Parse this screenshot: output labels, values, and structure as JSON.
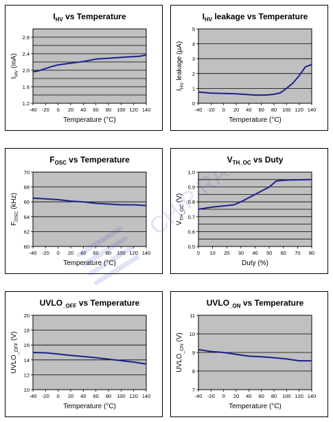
{
  "watermark": "CHIP RAIL",
  "chart_data": [
    {
      "type": "line",
      "title": "I",
      "title_sub": "HV",
      "title_rest": " vs Temperature",
      "xlabel": "Temperature (°C)",
      "ylabel": "I",
      "ylabel_sub": "HV",
      "ylabel_rest": " (mA)",
      "xlim": [
        -40,
        140
      ],
      "ylim": [
        1.2,
        3.0
      ],
      "xticks": [
        -40,
        -20,
        0,
        20,
        40,
        60,
        80,
        100,
        120,
        140
      ],
      "yticks": [
        "1.2",
        "1.6",
        "2.0",
        "2.4",
        "2.8"
      ],
      "ytick_values": [
        1.2,
        1.6,
        2.0,
        2.4,
        2.8
      ],
      "ygrid": [
        1.2,
        1.4,
        1.6,
        1.8,
        2.0,
        2.2,
        2.4,
        2.6,
        2.8,
        3.0
      ],
      "x": [
        -40,
        -30,
        -20,
        -10,
        0,
        10,
        20,
        30,
        40,
        50,
        60,
        70,
        80,
        90,
        100,
        110,
        120,
        130,
        140
      ],
      "y": [
        1.96,
        1.99,
        2.04,
        2.09,
        2.13,
        2.15,
        2.17,
        2.19,
        2.21,
        2.24,
        2.27,
        2.28,
        2.29,
        2.3,
        2.31,
        2.32,
        2.33,
        2.34,
        2.37
      ]
    },
    {
      "type": "line",
      "title": "I",
      "title_sub": "HV",
      "title_rest": " leakage vs Temperature",
      "xlabel": "Temperature (°C)",
      "ylabel": "I",
      "ylabel_sub": "HV",
      "ylabel_rest": " leakage (µA)",
      "xlim": [
        -40,
        140
      ],
      "ylim": [
        0,
        5
      ],
      "xticks": [
        -40,
        -20,
        0,
        20,
        40,
        60,
        80,
        100,
        120,
        140
      ],
      "yticks": [
        "0",
        "1",
        "2",
        "3",
        "4",
        "5"
      ],
      "ytick_values": [
        0,
        1,
        2,
        3,
        4,
        5
      ],
      "ygrid": [
        0,
        1,
        2,
        3,
        4,
        5
      ],
      "x": [
        -40,
        -20,
        0,
        20,
        40,
        50,
        60,
        70,
        80,
        90,
        100,
        110,
        120,
        130,
        140
      ],
      "y": [
        0.75,
        0.68,
        0.66,
        0.64,
        0.58,
        0.55,
        0.55,
        0.56,
        0.6,
        0.7,
        1.0,
        1.35,
        1.85,
        2.45,
        2.6
      ]
    },
    {
      "type": "line",
      "title": "F",
      "title_sub": "OSC",
      "title_rest": " vs Temperature",
      "xlabel": "Temperature (°C)",
      "ylabel": "F",
      "ylabel_sub": "OSC",
      "ylabel_rest": " (kHz)",
      "xlim": [
        -40,
        140
      ],
      "ylim": [
        60,
        70
      ],
      "xticks": [
        -40,
        -20,
        0,
        20,
        40,
        60,
        80,
        100,
        120,
        140
      ],
      "yticks": [
        "60",
        "62",
        "64",
        "66",
        "68",
        "70"
      ],
      "ytick_values": [
        60,
        62,
        64,
        66,
        68,
        70
      ],
      "ygrid": [
        60,
        62,
        64,
        66,
        68,
        70
      ],
      "x": [
        -40,
        -20,
        0,
        20,
        40,
        60,
        80,
        100,
        120,
        140
      ],
      "y": [
        66.5,
        66.4,
        66.3,
        66.1,
        66.0,
        65.8,
        65.7,
        65.6,
        65.6,
        65.5
      ]
    },
    {
      "type": "line",
      "title": "V",
      "title_sub": "TH_OC",
      "title_rest": " vs Duty",
      "xlabel": "Duty (%)",
      "ylabel": "V",
      "ylabel_sub": "TH_OC",
      "ylabel_rest": " (V)",
      "xlim": [
        0,
        80
      ],
      "ylim": [
        0.5,
        1.0
      ],
      "xticks": [
        0,
        10,
        20,
        30,
        40,
        50,
        60,
        70,
        80
      ],
      "yticks": [
        "0.5",
        "0.6",
        "0.7",
        "0.8",
        "0.9",
        "1.0"
      ],
      "ytick_values": [
        0.5,
        0.6,
        0.7,
        0.8,
        0.9,
        1.0
      ],
      "ygrid": [
        0.5,
        0.55,
        0.6,
        0.65,
        0.7,
        0.75,
        0.8,
        0.85,
        0.9,
        0.95,
        1.0
      ],
      "x": [
        0,
        5,
        10,
        15,
        20,
        25,
        30,
        35,
        40,
        45,
        50,
        55,
        60,
        65,
        70,
        75,
        80
      ],
      "y": [
        0.75,
        0.758,
        0.765,
        0.77,
        0.775,
        0.78,
        0.8,
        0.825,
        0.85,
        0.875,
        0.9,
        0.94,
        0.945,
        0.947,
        0.948,
        0.949,
        0.95
      ]
    },
    {
      "type": "line",
      "title": "UVLO",
      "title_sub": "_OFF",
      "title_rest": " vs Temperature",
      "xlabel": "Temperature (°C)",
      "ylabel": "UVLO",
      "ylabel_sub": "_OFF",
      "ylabel_rest": " (V)",
      "xlim": [
        -40,
        140
      ],
      "ylim": [
        10,
        20
      ],
      "xticks": [
        -40,
        -20,
        0,
        20,
        40,
        60,
        80,
        100,
        120,
        140
      ],
      "yticks": [
        "10",
        "12",
        "14",
        "16",
        "18",
        "20"
      ],
      "ytick_values": [
        10,
        12,
        14,
        16,
        18,
        20
      ],
      "ygrid": [
        10,
        12,
        14,
        16,
        18,
        20
      ],
      "x": [
        -40,
        -20,
        0,
        20,
        40,
        60,
        80,
        100,
        120,
        140
      ],
      "y": [
        15.0,
        14.95,
        14.8,
        14.6,
        14.45,
        14.3,
        14.1,
        13.9,
        13.7,
        13.45
      ]
    },
    {
      "type": "line",
      "title": "UVLO",
      "title_sub": "_ON",
      "title_rest": " vs Temperature",
      "xlabel": "Temperature (°C)",
      "ylabel": "UVLO",
      "ylabel_sub": "_ON",
      "ylabel_rest": " (V)",
      "xlim": [
        -40,
        140
      ],
      "ylim": [
        7,
        11
      ],
      "xticks": [
        -40,
        -20,
        0,
        20,
        40,
        60,
        80,
        100,
        120,
        140
      ],
      "yticks": [
        "7",
        "8",
        "9",
        "10",
        "11"
      ],
      "ytick_values": [
        7,
        8,
        9,
        10,
        11
      ],
      "ygrid": [
        7,
        8,
        9,
        10,
        11
      ],
      "x": [
        -40,
        -20,
        0,
        20,
        40,
        60,
        80,
        100,
        120,
        140
      ],
      "y": [
        9.15,
        9.05,
        9.0,
        8.9,
        8.8,
        8.77,
        8.72,
        8.65,
        8.55,
        8.55
      ]
    }
  ]
}
